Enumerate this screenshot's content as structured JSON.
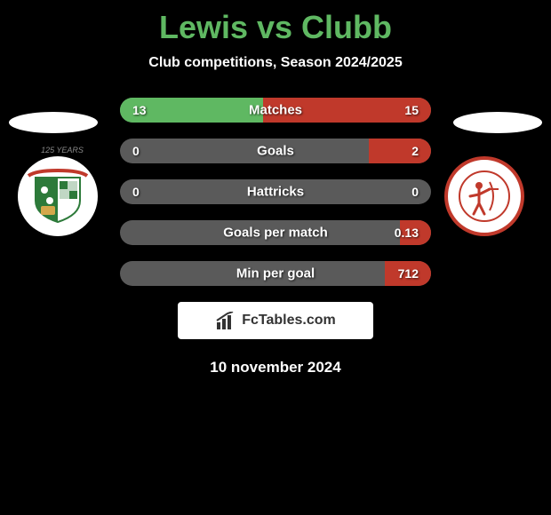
{
  "title": "Lewis vs Clubb",
  "subtitle": "Club competitions, Season 2024/2025",
  "colors": {
    "background": "#000000",
    "player1_accent": "#5fb862",
    "player2_accent": "#c0392b",
    "bar_bg": "#5a5a5a",
    "text_white": "#ffffff",
    "logo_bg": "#ffffff",
    "logo_text": "#333333"
  },
  "stats": {
    "rows": [
      {
        "label": "Matches",
        "left_value": "13",
        "right_value": "15",
        "left_pct": 46,
        "right_pct": 54
      },
      {
        "label": "Goals",
        "left_value": "0",
        "right_value": "2",
        "left_pct": 0,
        "right_pct": 20
      },
      {
        "label": "Hattricks",
        "left_value": "0",
        "right_value": "0",
        "left_pct": 0,
        "right_pct": 0
      },
      {
        "label": "Goals per match",
        "left_value": "",
        "right_value": "0.13",
        "left_pct": 0,
        "right_pct": 10
      },
      {
        "label": "Min per goal",
        "left_value": "",
        "right_value": "712",
        "left_pct": 0,
        "right_pct": 15
      }
    ]
  },
  "logo": {
    "text": "FcTables.com"
  },
  "date": "10 november 2024",
  "badges": {
    "left": {
      "top_text": "125 YEARS",
      "shield_color1": "#2d7a3a",
      "shield_color2": "#ffffff",
      "dragon_color": "#c0392b"
    },
    "right": {
      "ring_color": "#c0392b",
      "inner_bg": "#ffffff",
      "figure_color": "#c0392b"
    }
  }
}
